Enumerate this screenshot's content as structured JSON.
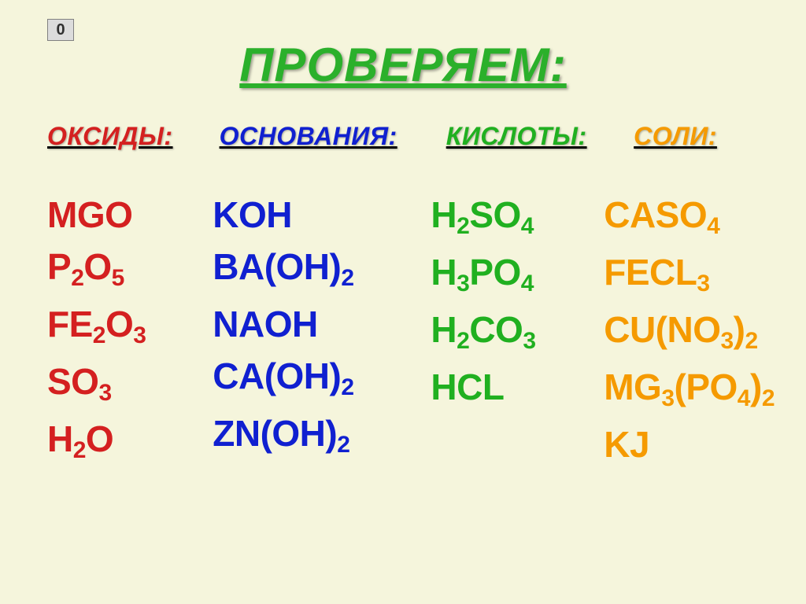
{
  "badge": "0",
  "title": "ПРОВЕРЯЕМ:",
  "colors": {
    "background": "#f5f5dc",
    "oxides": "#d42020",
    "bases": "#1020d0",
    "acids": "#20b020",
    "salts": "#f59a00",
    "title": "#2bb02b"
  },
  "typography": {
    "title_fontsize": 60,
    "header_fontsize": 32,
    "formula_fontsize": 46,
    "subscript_fontsize": 30,
    "family": "Arial"
  },
  "headers": {
    "oxides": "ОКСИДЫ:",
    "bases": "ОСНОВАНИЯ:",
    "acids": "КИСЛОТЫ:",
    "salts": "СОЛИ:"
  },
  "columns": {
    "oxides": [
      [
        [
          "t",
          "MGO"
        ]
      ],
      [
        [
          "t",
          "P"
        ],
        [
          "s",
          "2"
        ],
        [
          "t",
          "O"
        ],
        [
          "s",
          "5"
        ]
      ],
      [
        [
          "t",
          "FE"
        ],
        [
          "s",
          "2"
        ],
        [
          "t",
          "O"
        ],
        [
          "s",
          "3"
        ]
      ],
      [
        [
          "t",
          "SO"
        ],
        [
          "s",
          "3"
        ]
      ],
      [
        [
          "t",
          "H"
        ],
        [
          "s",
          "2"
        ],
        [
          "t",
          "O"
        ]
      ]
    ],
    "bases": [
      [
        [
          "t",
          "KOH"
        ]
      ],
      [
        [
          "t",
          "BA(OH)"
        ],
        [
          "s",
          "2"
        ]
      ],
      [
        [
          "t",
          "NAOH"
        ]
      ],
      [
        [
          "t",
          "CA(OH)"
        ],
        [
          "s",
          "2"
        ]
      ],
      [
        [
          "t",
          "ZN(OH)"
        ],
        [
          "s",
          "2"
        ]
      ]
    ],
    "acids": [
      [
        [
          "t",
          "H"
        ],
        [
          "s",
          "2"
        ],
        [
          "t",
          "SO"
        ],
        [
          "s",
          "4"
        ]
      ],
      [
        [
          "t",
          "H"
        ],
        [
          "s",
          "3"
        ],
        [
          "t",
          "PO"
        ],
        [
          "s",
          "4"
        ]
      ],
      [
        [
          "t",
          "H"
        ],
        [
          "s",
          "2"
        ],
        [
          "t",
          "CO"
        ],
        [
          "s",
          "3"
        ]
      ],
      [
        [
          "t",
          "HCL"
        ]
      ]
    ],
    "salts": [
      [
        [
          "t",
          "CASO"
        ],
        [
          "s",
          "4"
        ]
      ],
      [
        [
          "t",
          "FECL"
        ],
        [
          "s",
          "3"
        ]
      ],
      [
        [
          "t",
          "CU(NO"
        ],
        [
          "s",
          "3"
        ],
        [
          "t",
          ")"
        ],
        [
          "s",
          "2"
        ]
      ],
      [
        [
          "t",
          "MG"
        ],
        [
          "s",
          "3"
        ],
        [
          "t",
          "(PO"
        ],
        [
          "s",
          "4"
        ],
        [
          "t",
          ")"
        ],
        [
          "s",
          "2"
        ]
      ],
      [
        [
          "t",
          "KJ"
        ]
      ]
    ]
  }
}
